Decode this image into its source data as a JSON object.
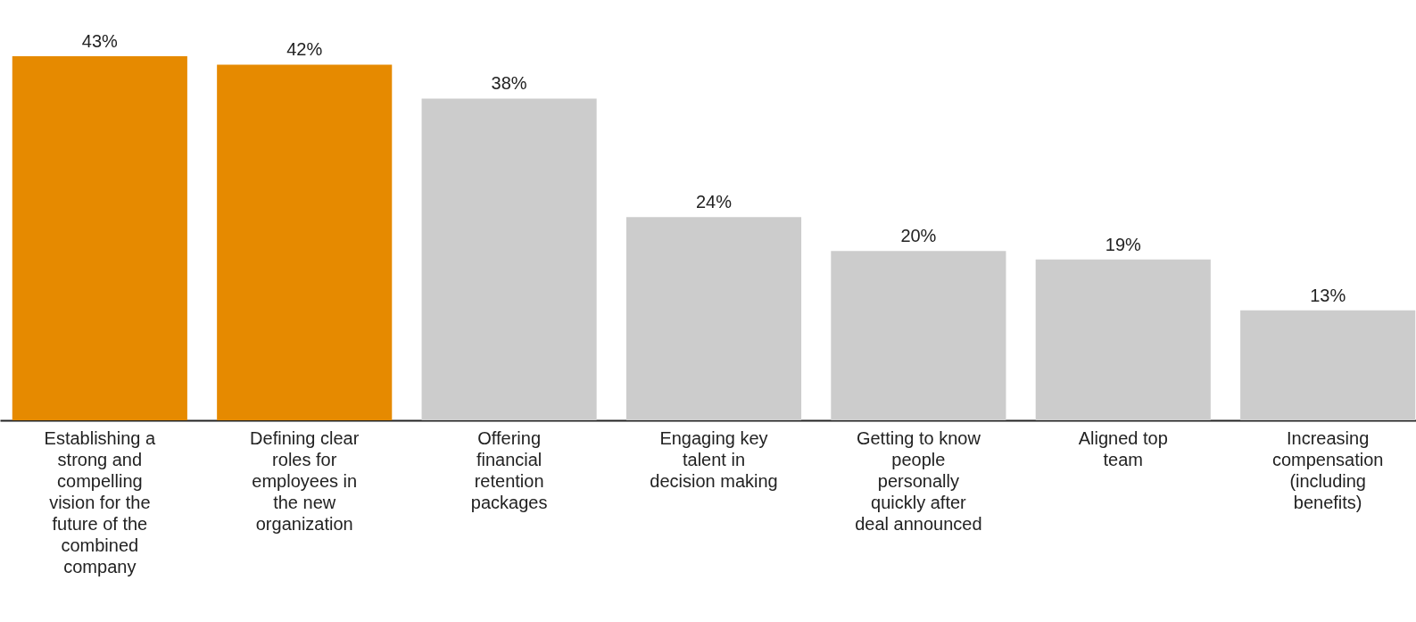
{
  "chart_data": {
    "type": "bar",
    "categories": [
      "Establishing a strong and compelling vision for the future of the combined company",
      "Defining clear roles for employees in the new organization",
      "Offering financial retention packages",
      "Engaging key talent in decision making",
      "Getting to know people personally quickly after deal announced",
      "Aligned top team",
      "Increasing compensation (including benefits)"
    ],
    "values": [
      43,
      42,
      38,
      24,
      20,
      19,
      13
    ],
    "value_labels": [
      "43%",
      "42%",
      "38%",
      "24%",
      "20%",
      "19%",
      "13%"
    ],
    "colors": [
      "#e68a00",
      "#e68a00",
      "#cccccc",
      "#cccccc",
      "#cccccc",
      "#cccccc",
      "#cccccc"
    ]
  }
}
